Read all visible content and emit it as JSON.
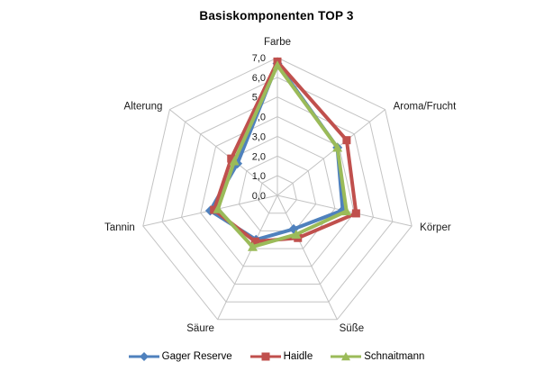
{
  "title": "Basiskomponenten TOP 3",
  "chart_data": {
    "type": "radar",
    "categories": [
      "Farbe",
      "Aroma/Frucht",
      "Körper",
      "Süße",
      "Säure",
      "Tannin",
      "Alterung"
    ],
    "series": [
      {
        "name": "Gager Reserve",
        "color": "#4F81BD",
        "marker": "diamond",
        "values": [
          6.7,
          3.9,
          3.4,
          1.9,
          2.5,
          3.5,
          2.6
        ]
      },
      {
        "name": "Haidle",
        "color": "#C0504D",
        "marker": "square",
        "values": [
          6.8,
          4.5,
          4.1,
          2.4,
          2.6,
          3.3,
          3.0
        ]
      },
      {
        "name": "Schnaitmann",
        "color": "#9BBB59",
        "marker": "triangle",
        "values": [
          6.6,
          3.9,
          3.6,
          2.2,
          2.9,
          3.1,
          2.8
        ]
      }
    ],
    "radial_ticks": [
      "0,0",
      "1,0",
      "2,0",
      "3,0",
      "4,0",
      "5,0",
      "6,0",
      "7,0"
    ],
    "rmin": 0,
    "rmax": 7,
    "grid": true,
    "grid_color": "#C3C3C3",
    "background": "#ffffff",
    "legend_position": "bottom"
  }
}
